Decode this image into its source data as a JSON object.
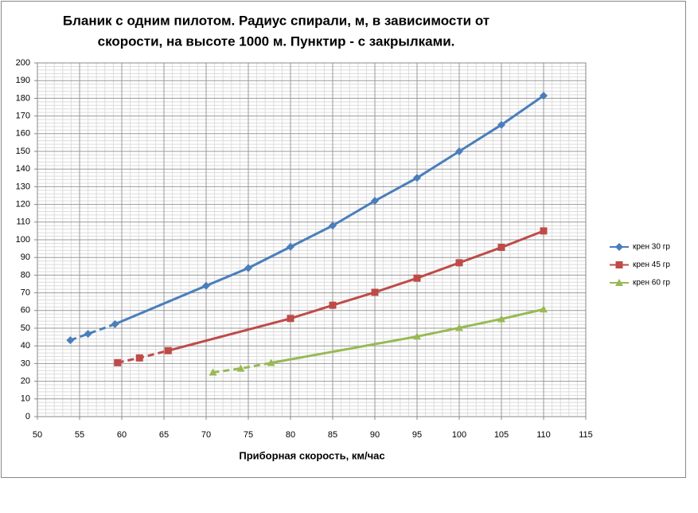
{
  "chart_data": {
    "type": "line",
    "title": [
      "Бланик с одним пилотом. Радиус спирали, м, в зависимости от",
      "скорости, на высоте 1000 м. Пунктир - с закрылками."
    ],
    "x_label": "Приборная скорость, км/час",
    "xlim": [
      50,
      115
    ],
    "xticks": [
      50,
      55,
      60,
      65,
      70,
      75,
      80,
      85,
      90,
      95,
      100,
      105,
      110,
      115
    ],
    "ylim": [
      0,
      200
    ],
    "yticks": [
      0,
      10,
      20,
      30,
      40,
      50,
      60,
      70,
      80,
      90,
      100,
      110,
      120,
      130,
      140,
      150,
      160,
      170,
      180,
      190,
      200
    ],
    "grid": true,
    "legend": "right",
    "series": [
      {
        "name": "крен 30 гр",
        "color": "#4a7ebb",
        "marker": "diamond",
        "dashed_points": 3,
        "x": [
          53.9,
          56,
          59.2,
          70,
          75,
          80,
          85,
          90,
          95,
          100,
          105,
          110
        ],
        "values": [
          43.2,
          46.8,
          52.3,
          74,
          84,
          96,
          108,
          122,
          135,
          150,
          165,
          181.5
        ]
      },
      {
        "name": "крен 45 гр",
        "color": "#be4b48",
        "marker": "square",
        "dashed_points": 3,
        "x": [
          59.5,
          62.1,
          65.5,
          80,
          85,
          90,
          95,
          100,
          105,
          110
        ],
        "values": [
          30.5,
          33.2,
          37.3,
          55.5,
          63,
          70.3,
          78.3,
          87,
          95.7,
          105
        ]
      },
      {
        "name": "крен 60 гр",
        "color": "#98b954",
        "marker": "triangle",
        "dashed_points": 3,
        "x": [
          70.8,
          74.1,
          77.7,
          95,
          100,
          105,
          110
        ],
        "values": [
          25,
          27.2,
          30.4,
          45.3,
          50.2,
          55.2,
          60.7
        ]
      }
    ]
  }
}
